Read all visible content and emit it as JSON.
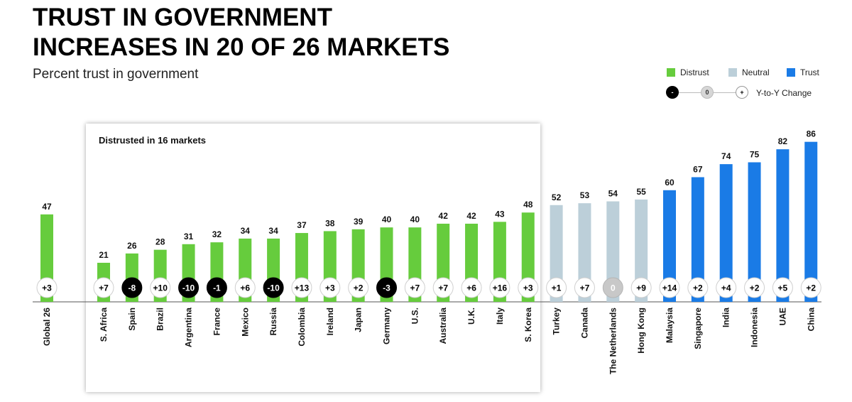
{
  "title_lines": [
    "TRUST IN GOVERNMENT",
    "INCREASES IN 20 OF 26 MARKETS"
  ],
  "subtitle": "Percent trust in government",
  "legend": {
    "distrust": "Distrust",
    "neutral": "Neutral",
    "trust": "Trust",
    "yoy_neg": "-",
    "yoy_zero": "0",
    "yoy_pos": "+",
    "yoy_label": "Y-to-Y Change"
  },
  "box_label": "Distrusted in 16 markets",
  "colors": {
    "distrust": "#66cc3d",
    "neutral": "#bccfd9",
    "trust": "#1a7be6",
    "negative_circle": "#000000",
    "zero_circle": "#c8c8c8"
  },
  "chart_data": {
    "type": "bar",
    "title": "TRUST IN GOVERNMENT INCREASES IN 20 OF 26 MARKETS",
    "ylabel": "Percent trust in government",
    "ylim": [
      0,
      100
    ],
    "grid": false,
    "legend_position": "top-right",
    "categories": [
      "Global 26",
      "S. Africa",
      "Spain",
      "Brazil",
      "Argentina",
      "France",
      "Mexico",
      "Russia",
      "Colombia",
      "Ireland",
      "Japan",
      "Germany",
      "U.S.",
      "Australia",
      "U.K.",
      "Italy",
      "S. Korea",
      "Turkey",
      "Canada",
      "The Netherlands",
      "Hong Kong",
      "Malaysia",
      "Singapore",
      "India",
      "Indonesia",
      "UAE",
      "China"
    ],
    "values": [
      47,
      21,
      26,
      28,
      31,
      32,
      34,
      34,
      37,
      38,
      39,
      40,
      40,
      42,
      42,
      43,
      48,
      52,
      53,
      54,
      55,
      60,
      67,
      74,
      75,
      82,
      86
    ],
    "groups": [
      "distrust",
      "distrust",
      "distrust",
      "distrust",
      "distrust",
      "distrust",
      "distrust",
      "distrust",
      "distrust",
      "distrust",
      "distrust",
      "distrust",
      "distrust",
      "distrust",
      "distrust",
      "distrust",
      "distrust",
      "neutral",
      "neutral",
      "neutral",
      "neutral",
      "trust",
      "trust",
      "trust",
      "trust",
      "trust",
      "trust"
    ],
    "yoy_change": [
      "+3",
      "+7",
      "-8",
      "+10",
      "-10",
      "-1",
      "+6",
      "-10",
      "+13",
      "+3",
      "+2",
      "-3",
      "+7",
      "+7",
      "+6",
      "+16",
      "+3",
      "+1",
      "+7",
      "0",
      "+9",
      "+14",
      "+2",
      "+4",
      "+2",
      "+5",
      "+2"
    ]
  }
}
